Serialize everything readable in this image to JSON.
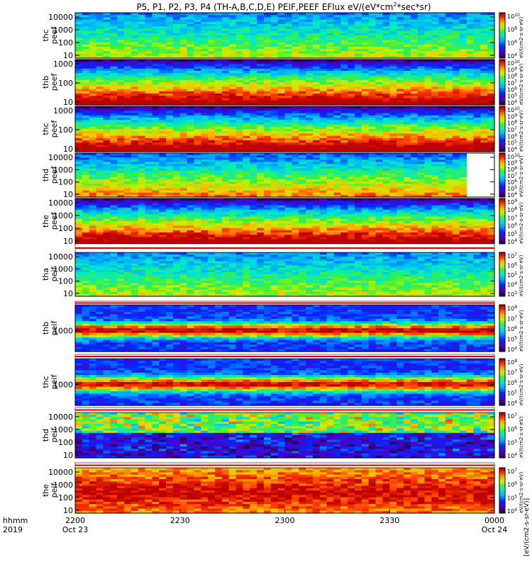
{
  "chart_data": {
    "type": "heatmap",
    "title": "P5, P1, P2, P3, P4 (TH-A,B,C,D,E) PEIF,PEEF EFlux eV/(eV*cm",
    "title_sup": "2",
    "title_tail": "*sec*sr)",
    "colorbar_label": "[eV/(cm2-s-sr-eV)]",
    "colorbar_label_repeat": "eV/(cm2-s-sr-eV)",
    "x_axis": {
      "row_label_1": "hhmm",
      "row_label_2": "2019",
      "ticks": [
        {
          "value": "2200",
          "date": "Oct 23"
        },
        {
          "value": "2230",
          "date": ""
        },
        {
          "value": "2300",
          "date": ""
        },
        {
          "value": "2330",
          "date": ""
        },
        {
          "value": "0000",
          "date": "Oct 24"
        }
      ],
      "range": [
        "2019-10-23 22:00",
        "2019-10-24 00:00"
      ]
    },
    "panels": [
      {
        "probe": "thc",
        "product": "peef",
        "y_ticks": [
          "10000",
          "1000",
          "100",
          "10"
        ],
        "cbar_ticks": [
          "10",
          "8",
          "6",
          "4"
        ],
        "profile": "low",
        "gap_start": 1.0
      },
      {
        "probe": "thb",
        "product": "peef",
        "y_ticks": [
          "1000",
          "100",
          "10"
        ],
        "cbar_ticks": [
          "10",
          "9",
          "8",
          "7",
          "6",
          "5",
          "4"
        ],
        "profile": "high",
        "gap_start": 0.985
      },
      {
        "probe": "thc",
        "product": "peef",
        "y_ticks": [
          "1000",
          "100",
          "10"
        ],
        "cbar_ticks": [
          "10",
          "9",
          "8",
          "7",
          "6",
          "5",
          "4"
        ],
        "profile": "high",
        "gap_start": 1.0
      },
      {
        "probe": "thd",
        "product": "peef",
        "y_ticks": [
          "10000",
          "1000",
          "100",
          "10"
        ],
        "cbar_ticks": [
          "10",
          "9",
          "8",
          "7",
          "6",
          "5",
          "4"
        ],
        "profile": "mid",
        "gap_start": 0.93
      },
      {
        "probe": "the",
        "product": "peef",
        "y_ticks": [
          "10000",
          "1000",
          "100",
          "10"
        ],
        "cbar_ticks": [
          "9",
          "8",
          "7",
          "6",
          "5",
          "4"
        ],
        "profile": "high",
        "gap_start": 1.0
      },
      {
        "probe": "tha",
        "product": "peif",
        "y_ticks": [
          "10000",
          "1000",
          "100",
          "10"
        ],
        "cbar_ticks": [
          "7",
          "6",
          "5",
          "4",
          "3"
        ],
        "profile": "low",
        "gap_start": 1.0
      },
      {
        "probe": "thb",
        "product": "peif",
        "y_ticks": [
          "1000"
        ],
        "cbar_ticks": [
          "8",
          "7",
          "6",
          "5",
          "4"
        ],
        "profile": "band",
        "gap_start": 0.985
      },
      {
        "probe": "thc",
        "product": "peif",
        "y_ticks": [
          "1000"
        ],
        "cbar_ticks": [
          "8",
          "7",
          "6",
          "5",
          "4"
        ],
        "profile": "band",
        "gap_start": 1.0
      },
      {
        "probe": "thd",
        "product": "peif",
        "y_ticks": [
          "10000",
          "1000",
          "100",
          "10"
        ],
        "cbar_ticks": [
          "7",
          "6",
          "5",
          "4"
        ],
        "profile": "mixed",
        "gap_start": 1.0
      },
      {
        "probe": "the",
        "product": "peif",
        "y_ticks": [
          "10000",
          "1000",
          "100",
          "10"
        ],
        "cbar_ticks": [
          "7",
          "6",
          "5",
          "4"
        ],
        "profile": "hot",
        "gap_start": 1.0
      }
    ]
  }
}
